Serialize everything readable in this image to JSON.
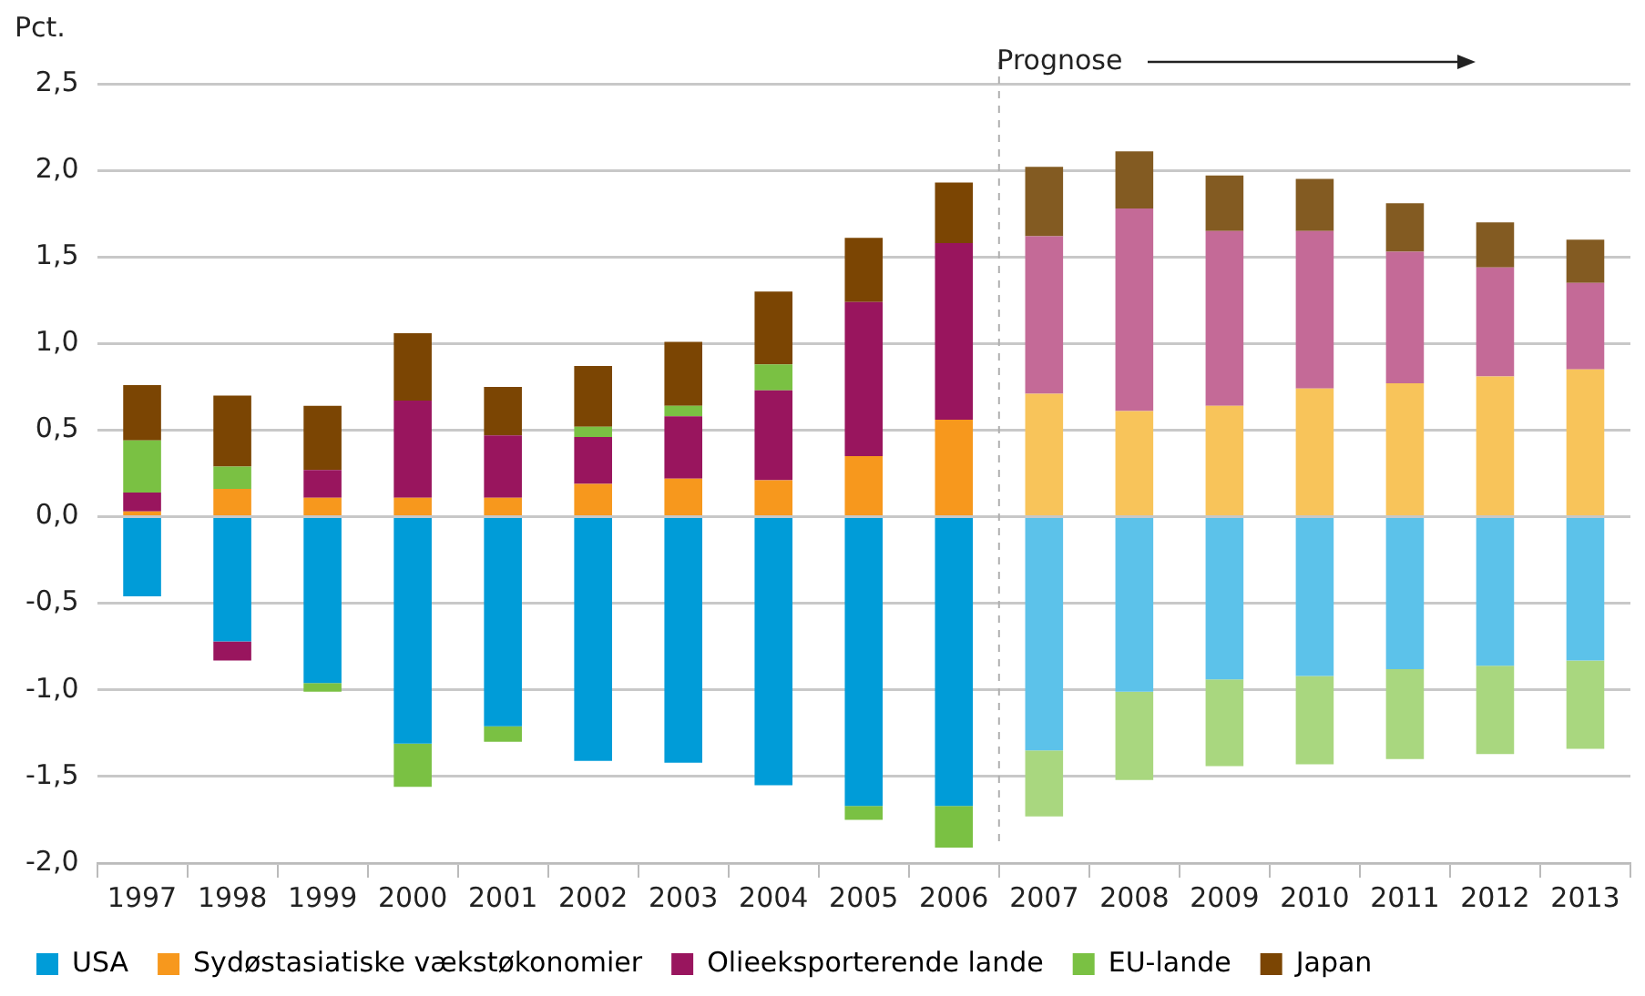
{
  "chart_data": {
    "type": "bar",
    "stacked": true,
    "ylabel": "Pct.",
    "categories": [
      "1997",
      "1998",
      "1999",
      "2000",
      "2001",
      "2002",
      "2003",
      "2004",
      "2005",
      "2006",
      "2007",
      "2008",
      "2009",
      "2010",
      "2011",
      "2012",
      "2013"
    ],
    "series": [
      {
        "name": "USA",
        "color": "#009cd8",
        "colors": [
          "#009cd8",
          "#009cd8",
          "#009cd8",
          "#009cd8",
          "#009cd8",
          "#009cd8",
          "#009cd8",
          "#009cd8",
          "#009cd8",
          "#009cd8",
          "#5cc2ea",
          "#5cc2ea",
          "#5cc2ea",
          "#5cc2ea",
          "#5cc2ea",
          "#5cc2ea",
          "#5cc2ea"
        ],
        "values": [
          -0.46,
          -0.72,
          -0.96,
          -1.31,
          -1.21,
          -1.41,
          -1.42,
          -1.55,
          -1.67,
          -1.67,
          -1.35,
          -1.01,
          -0.94,
          -0.92,
          -0.88,
          -0.86,
          -0.83
        ]
      },
      {
        "name": "Sydøstasiatiske vækstøkonomier",
        "color": "#f7981d",
        "colors": [
          "#f7981d",
          "#f7981d",
          "#f7981d",
          "#f7981d",
          "#f7981d",
          "#f7981d",
          "#f7981d",
          "#f7981d",
          "#f7981d",
          "#f7981d",
          "#f8c45a",
          "#f8c45a",
          "#f8c45a",
          "#f8c45a",
          "#f8c45a",
          "#f8c45a",
          "#f8c45a"
        ],
        "values": [
          0.03,
          0.16,
          0.11,
          0.11,
          0.11,
          0.19,
          0.22,
          0.21,
          0.35,
          0.56,
          0.71,
          0.61,
          0.64,
          0.74,
          0.77,
          0.81,
          0.85
        ]
      },
      {
        "name": "Olieeksporterende lande",
        "color": "#99155e",
        "colors": [
          "#99155e",
          "#99155e",
          "#99155e",
          "#99155e",
          "#99155e",
          "#99155e",
          "#99155e",
          "#99155e",
          "#99155e",
          "#99155e",
          "#c46a97",
          "#c46a97",
          "#c46a97",
          "#c46a97",
          "#c46a97",
          "#c46a97",
          "#c46a97"
        ],
        "values": [
          0.11,
          -0.11,
          0.16,
          0.56,
          0.36,
          0.27,
          0.36,
          0.52,
          0.89,
          1.02,
          0.91,
          1.17,
          1.01,
          0.91,
          0.76,
          0.63,
          0.5
        ]
      },
      {
        "name": "EU-lande",
        "color": "#7ac143",
        "colors": [
          "#7ac143",
          "#7ac143",
          "#7ac143",
          "#7ac143",
          "#7ac143",
          "#7ac143",
          "#7ac143",
          "#7ac143",
          "#7ac143",
          "#7ac143",
          "#a9d77f",
          "#a9d77f",
          "#a9d77f",
          "#a9d77f",
          "#a9d77f",
          "#a9d77f",
          "#a9d77f"
        ],
        "values": [
          0.3,
          0.13,
          -0.05,
          -0.25,
          -0.09,
          0.06,
          0.06,
          0.15,
          -0.08,
          -0.24,
          -0.38,
          -0.51,
          -0.5,
          -0.51,
          -0.52,
          -0.51,
          -0.51
        ]
      },
      {
        "name": "Japan",
        "color": "#7b4503",
        "colors": [
          "#7b4503",
          "#7b4503",
          "#7b4503",
          "#7b4503",
          "#7b4503",
          "#7b4503",
          "#7b4503",
          "#7b4503",
          "#7b4503",
          "#7b4503",
          "#835b22",
          "#835b22",
          "#835b22",
          "#835b22",
          "#835b22",
          "#835b22",
          "#835b22"
        ],
        "values": [
          0.32,
          0.41,
          0.37,
          0.39,
          0.28,
          0.35,
          0.37,
          0.42,
          0.37,
          0.35,
          0.4,
          0.33,
          0.32,
          0.3,
          0.28,
          0.26,
          0.25
        ]
      }
    ],
    "ylim": [
      -2,
      2.5
    ],
    "yticks": [
      {
        "value": -2,
        "label": "-2,0"
      },
      {
        "value": -1.5,
        "label": "-1,5"
      },
      {
        "value": -1,
        "label": "-1,0"
      },
      {
        "value": -0.5,
        "label": "-0,5"
      },
      {
        "value": 0,
        "label": "0,0"
      },
      {
        "value": 0.5,
        "label": "0,5"
      },
      {
        "value": 1,
        "label": "1,0"
      },
      {
        "value": 1.5,
        "label": "1,5"
      },
      {
        "value": 2,
        "label": "2,0"
      },
      {
        "value": 2.5,
        "label": "2,5"
      }
    ],
    "grid": "y",
    "legend": "bottom",
    "ref_lines": [
      {
        "axis": "x",
        "value": "2007",
        "color": "#b0b0b0",
        "line_style": "dashed"
      }
    ],
    "annotations": [
      "Prognose"
    ]
  }
}
